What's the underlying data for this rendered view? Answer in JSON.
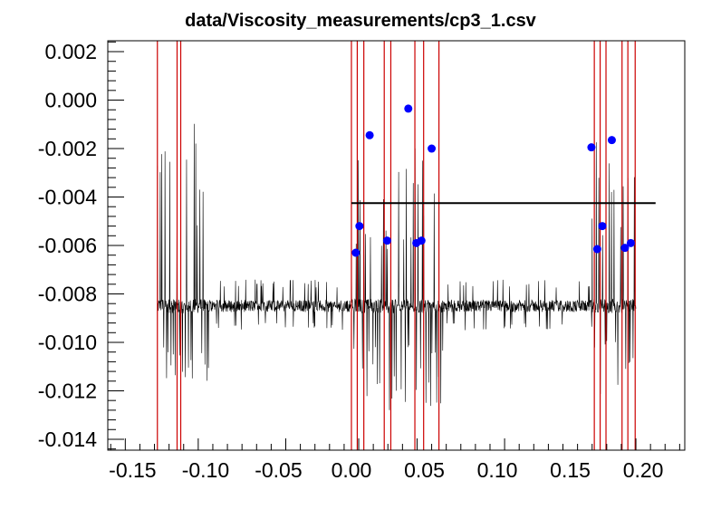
{
  "chart_data": {
    "type": "scatter",
    "title": "data/Viscosity_measurements/cp3_1.csv",
    "xlabel": "",
    "ylabel": "",
    "xlim": [
      -0.167,
      0.2285
    ],
    "ylim": [
      -0.01445,
      0.00245
    ],
    "x_ticks": [
      -0.15,
      -0.1,
      -0.05,
      0.0,
      0.05,
      0.1,
      0.15,
      0.2
    ],
    "x_tick_labels": [
      "-0.15",
      "-0.10",
      "-0.05",
      "0.00",
      "0.05",
      "0.10",
      "0.15",
      "0.20"
    ],
    "y_ticks": [
      0.002,
      0.0,
      -0.002,
      -0.004,
      -0.006,
      -0.008,
      -0.01,
      -0.012,
      -0.014
    ],
    "y_tick_labels": [
      "0.002",
      "0.000",
      "-0.002",
      "-0.004",
      "-0.006",
      "-0.008",
      "-0.010",
      "-0.012",
      "-0.014"
    ],
    "grid": false,
    "series": [
      {
        "kind": "signal",
        "color": "#000000",
        "baseline": -0.0085,
        "x_range": [
          -0.133,
          0.195
        ],
        "segments": [
          {
            "x": [
              -0.133,
              -0.097
            ],
            "noise": 0.0003,
            "spike_up": -0.0009,
            "spike_down": -0.0122,
            "spike_spacing": 0.0013
          },
          {
            "x": [
              -0.097,
              0.0
            ],
            "noise": 0.00025,
            "spike_up": -0.0078,
            "spike_down": -0.0092,
            "spike_spacing": 0
          },
          {
            "x": [
              0.0,
              0.063
            ],
            "noise": 0.0003,
            "spike_up": -0.0019,
            "spike_down": -0.013,
            "spike_spacing": 0.0012
          },
          {
            "x": [
              0.063,
              0.165
            ],
            "noise": 0.00025,
            "spike_up": -0.0078,
            "spike_down": -0.0092,
            "spike_spacing": 0
          },
          {
            "x": [
              0.165,
              0.195
            ],
            "noise": 0.0003,
            "spike_up": -0.0017,
            "spike_down": -0.0122,
            "spike_spacing": 0.0012
          }
        ]
      },
      {
        "kind": "points",
        "color": "#0000ff",
        "points": [
          {
            "x": 0.003,
            "y": -0.0063
          },
          {
            "x": 0.0055,
            "y": -0.0052
          },
          {
            "x": 0.0125,
            "y": -0.00145
          },
          {
            "x": 0.0245,
            "y": -0.0058
          },
          {
            "x": 0.039,
            "y": -0.00035
          },
          {
            "x": 0.0445,
            "y": -0.0059
          },
          {
            "x": 0.048,
            "y": -0.0058
          },
          {
            "x": 0.055,
            "y": -0.002
          },
          {
            "x": 0.1645,
            "y": -0.00195
          },
          {
            "x": 0.1685,
            "y": -0.00615
          },
          {
            "x": 0.172,
            "y": -0.0052
          },
          {
            "x": 0.1785,
            "y": -0.00165
          },
          {
            "x": 0.1875,
            "y": -0.0061
          },
          {
            "x": 0.1915,
            "y": -0.0059
          }
        ]
      },
      {
        "kind": "hline",
        "color": "#000000",
        "y": -0.00425,
        "x": [
          0.0,
          0.2085
        ]
      },
      {
        "kind": "vlines",
        "color": "#cc0000",
        "x": [
          -0.133,
          -0.1195,
          -0.117,
          0.0,
          0.004,
          0.0085,
          0.0225,
          0.027,
          0.0435,
          0.0495,
          0.06,
          0.1665,
          0.1705,
          0.1745,
          0.1855,
          0.1895,
          0.1945
        ]
      }
    ]
  }
}
